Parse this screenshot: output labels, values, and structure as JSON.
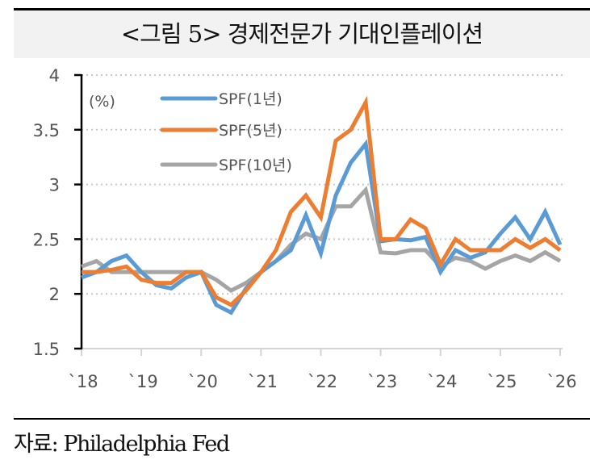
{
  "title": "<그림 5>    경제전문가 기대인플레이션",
  "source": "자료: Philadelphia Fed",
  "chart_data": {
    "type": "line",
    "title": "<그림 5>    경제전문가 기대인플레이션",
    "unit_label": "(%)",
    "xlabel": "",
    "ylabel": "(%)",
    "ylim": [
      1.5,
      4
    ],
    "yticks": [
      1.5,
      2,
      2.5,
      3,
      3.5,
      4
    ],
    "ytick_labels": [
      "1.5",
      "2",
      "2.5",
      "3",
      "3.5",
      "4"
    ],
    "xlim": [
      2018,
      2026
    ],
    "xticks": [
      2018,
      2019,
      2020,
      2021,
      2022,
      2023,
      2024,
      2025,
      2026
    ],
    "xtick_labels": [
      "`18",
      "`19",
      "`20",
      "`21",
      "`22",
      "`23",
      "`24",
      "`25",
      "`26"
    ],
    "grid": "horizontal-dotted",
    "legend_position": "top-left",
    "x": [
      2018.0,
      2018.25,
      2018.5,
      2018.75,
      2019.0,
      2019.25,
      2019.5,
      2019.75,
      2020.0,
      2020.25,
      2020.5,
      2020.75,
      2021.0,
      2021.25,
      2021.5,
      2021.75,
      2022.0,
      2022.25,
      2022.5,
      2022.75,
      2023.0,
      2023.25,
      2023.5,
      2023.75,
      2024.0,
      2024.25,
      2024.5,
      2024.75,
      2025.0,
      2025.25,
      2025.5,
      2025.75,
      2026.0
    ],
    "series": [
      {
        "name": "SPF(1년)",
        "color": "#5b9bd5",
        "values": [
          2.15,
          2.2,
          2.3,
          2.35,
          2.2,
          2.08,
          2.05,
          2.15,
          2.2,
          1.9,
          1.83,
          2.05,
          2.2,
          2.3,
          2.4,
          2.72,
          2.37,
          2.9,
          3.2,
          3.37,
          2.48,
          2.5,
          2.49,
          2.52,
          2.2,
          2.4,
          2.33,
          2.38,
          2.55,
          2.7,
          2.5,
          2.75,
          2.45
        ]
      },
      {
        "name": "SPF(5년)",
        "color": "#ed7d31",
        "values": [
          2.2,
          2.2,
          2.22,
          2.25,
          2.13,
          2.1,
          2.1,
          2.2,
          2.2,
          1.97,
          1.9,
          2.03,
          2.2,
          2.4,
          2.75,
          2.9,
          2.7,
          3.4,
          3.5,
          3.75,
          2.5,
          2.5,
          2.68,
          2.6,
          2.27,
          2.5,
          2.4,
          2.4,
          2.4,
          2.5,
          2.42,
          2.5,
          2.4
        ]
      },
      {
        "name": "SPF(10년)",
        "color": "#a5a5a5",
        "values": [
          2.25,
          2.3,
          2.2,
          2.2,
          2.2,
          2.2,
          2.2,
          2.2,
          2.2,
          2.13,
          2.03,
          2.1,
          2.2,
          2.3,
          2.45,
          2.55,
          2.5,
          2.8,
          2.8,
          2.95,
          2.38,
          2.37,
          2.4,
          2.4,
          2.25,
          2.33,
          2.3,
          2.23,
          2.3,
          2.35,
          2.3,
          2.38,
          2.3
        ]
      }
    ]
  }
}
